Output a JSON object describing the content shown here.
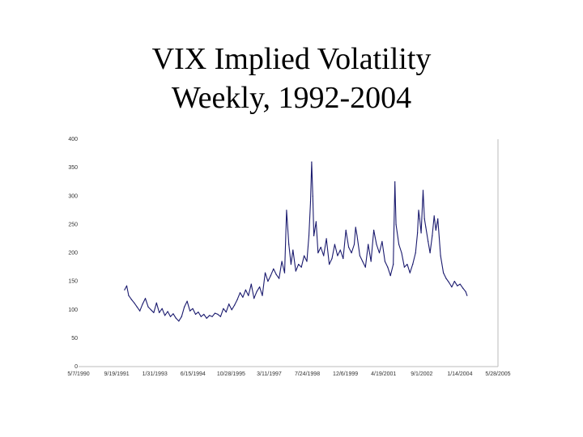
{
  "slide": {
    "title_line_1": "VIX Implied Volatility",
    "title_line_2": "Weekly, 1992-2004"
  },
  "chart_data": {
    "type": "line",
    "title": "VIX Implied Volatility Weekly, 1992-2004",
    "xlabel": "",
    "ylabel": "",
    "x_tick_labels": [
      "5/7/1990",
      "9/19/1991",
      "1/31/1993",
      "6/15/1994",
      "10/28/1995",
      "3/11/1997",
      "7/24/1998",
      "12/6/1999",
      "4/19/2001",
      "9/1/2002",
      "1/14/2004",
      "5/28/2005"
    ],
    "y_tick_labels": [
      "0",
      "50",
      "100",
      "150",
      "200",
      "250",
      "300",
      "350",
      "400"
    ],
    "ylim": [
      0,
      400
    ],
    "xlim": [
      1990.35,
      2005.41
    ],
    "grid": false,
    "series": [
      {
        "name": "VIX",
        "color": "#1a1a6e",
        "x": [
          1992.0,
          1992.08,
          1992.15,
          1992.25,
          1992.35,
          1992.45,
          1992.55,
          1992.65,
          1992.75,
          1992.85,
          1992.95,
          1993.05,
          1993.15,
          1993.25,
          1993.35,
          1993.45,
          1993.55,
          1993.65,
          1993.75,
          1993.85,
          1993.95,
          1994.05,
          1994.15,
          1994.25,
          1994.35,
          1994.45,
          1994.55,
          1994.65,
          1994.75,
          1994.85,
          1994.95,
          1995.05,
          1995.15,
          1995.25,
          1995.35,
          1995.45,
          1995.55,
          1995.65,
          1995.75,
          1995.85,
          1995.95,
          1996.05,
          1996.15,
          1996.25,
          1996.35,
          1996.45,
          1996.55,
          1996.65,
          1996.75,
          1996.85,
          1996.95,
          1997.05,
          1997.15,
          1997.25,
          1997.35,
          1997.45,
          1997.55,
          1997.65,
          1997.75,
          1997.82,
          1997.9,
          1997.98,
          1998.05,
          1998.15,
          1998.25,
          1998.35,
          1998.45,
          1998.55,
          1998.62,
          1998.68,
          1998.72,
          1998.76,
          1998.8,
          1998.88,
          1998.95,
          1999.05,
          1999.15,
          1999.25,
          1999.35,
          1999.45,
          1999.55,
          1999.65,
          1999.75,
          1999.85,
          1999.95,
          2000.05,
          2000.15,
          2000.25,
          2000.3,
          2000.35,
          2000.45,
          2000.55,
          2000.65,
          2000.75,
          2000.85,
          2000.95,
          2001.05,
          2001.15,
          2001.25,
          2001.35,
          2001.45,
          2001.55,
          2001.65,
          2001.71,
          2001.75,
          2001.85,
          2001.95,
          2002.05,
          2002.15,
          2002.25,
          2002.35,
          2002.45,
          2002.52,
          2002.56,
          2002.6,
          2002.65,
          2002.72,
          2002.77,
          2002.82,
          2002.9,
          2002.97,
          2003.05,
          2003.12,
          2003.18,
          2003.25,
          2003.35,
          2003.45,
          2003.55,
          2003.65,
          2003.75,
          2003.85,
          2003.95,
          2004.05,
          2004.15,
          2004.25,
          2004.3
        ],
        "values": [
          135,
          142,
          125,
          118,
          112,
          105,
          98,
          110,
          120,
          105,
          100,
          95,
          112,
          95,
          102,
          90,
          97,
          88,
          93,
          85,
          80,
          88,
          105,
          115,
          98,
          102,
          92,
          96,
          88,
          92,
          85,
          90,
          88,
          94,
          92,
          88,
          102,
          96,
          110,
          100,
          108,
          118,
          130,
          122,
          135,
          125,
          145,
          120,
          132,
          140,
          125,
          165,
          150,
          160,
          172,
          162,
          155,
          185,
          165,
          275,
          215,
          180,
          205,
          168,
          180,
          175,
          195,
          185,
          230,
          290,
          360,
          300,
          230,
          255,
          200,
          210,
          195,
          225,
          180,
          190,
          215,
          195,
          205,
          190,
          240,
          210,
          200,
          215,
          245,
          230,
          195,
          185,
          175,
          215,
          185,
          240,
          215,
          200,
          220,
          185,
          175,
          160,
          180,
          325,
          250,
          215,
          200,
          175,
          180,
          165,
          180,
          200,
          235,
          275,
          260,
          235,
          310,
          260,
          245,
          220,
          200,
          230,
          265,
          240,
          260,
          195,
          165,
          155,
          148,
          140,
          150,
          142,
          145,
          138,
          132,
          125
        ]
      }
    ]
  }
}
